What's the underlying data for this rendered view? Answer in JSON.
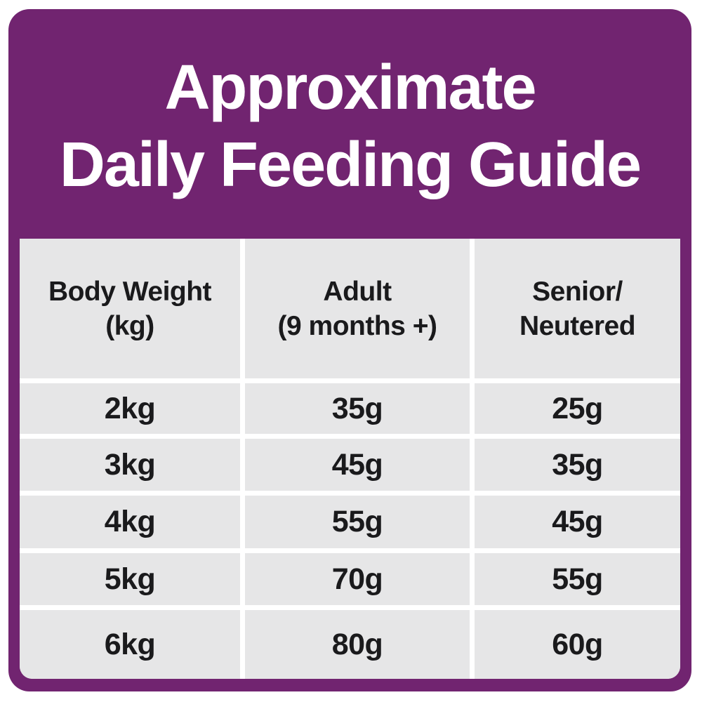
{
  "title": {
    "line1": "Approximate",
    "line2": "Daily Feeding Guide"
  },
  "table": {
    "columns": [
      {
        "label_line1": "Body Weight",
        "label_line2": "(kg)"
      },
      {
        "label_line1": "Adult",
        "label_line2": "(9 months +)"
      },
      {
        "label_line1": "Senior/",
        "label_line2": "Neutered"
      }
    ],
    "rows": [
      {
        "body_weight": "2kg",
        "adult": "35g",
        "senior_neutered": "25g"
      },
      {
        "body_weight": "3kg",
        "adult": "45g",
        "senior_neutered": "35g"
      },
      {
        "body_weight": "4kg",
        "adult": "55g",
        "senior_neutered": "45g"
      },
      {
        "body_weight": "5kg",
        "adult": "70g",
        "senior_neutered": "55g"
      },
      {
        "body_weight": "6kg",
        "adult": "80g",
        "senior_neutered": "60g"
      }
    ]
  },
  "chart_data": {
    "type": "table",
    "title": "Approximate Daily Feeding Guide",
    "columns": [
      "Body Weight (kg)",
      "Adult (9 months +)",
      "Senior/Neutered"
    ],
    "rows": [
      [
        "2kg",
        "35g",
        "25g"
      ],
      [
        "3kg",
        "45g",
        "35g"
      ],
      [
        "4kg",
        "55g",
        "45g"
      ],
      [
        "5kg",
        "70g",
        "55g"
      ],
      [
        "6kg",
        "80g",
        "60g"
      ]
    ]
  },
  "colors": {
    "header_purple": "#712470",
    "cell_gray": "#e6e6e7",
    "text_dark": "#1a1a1c",
    "text_white": "#ffffff",
    "page_background": "#ffffff"
  }
}
